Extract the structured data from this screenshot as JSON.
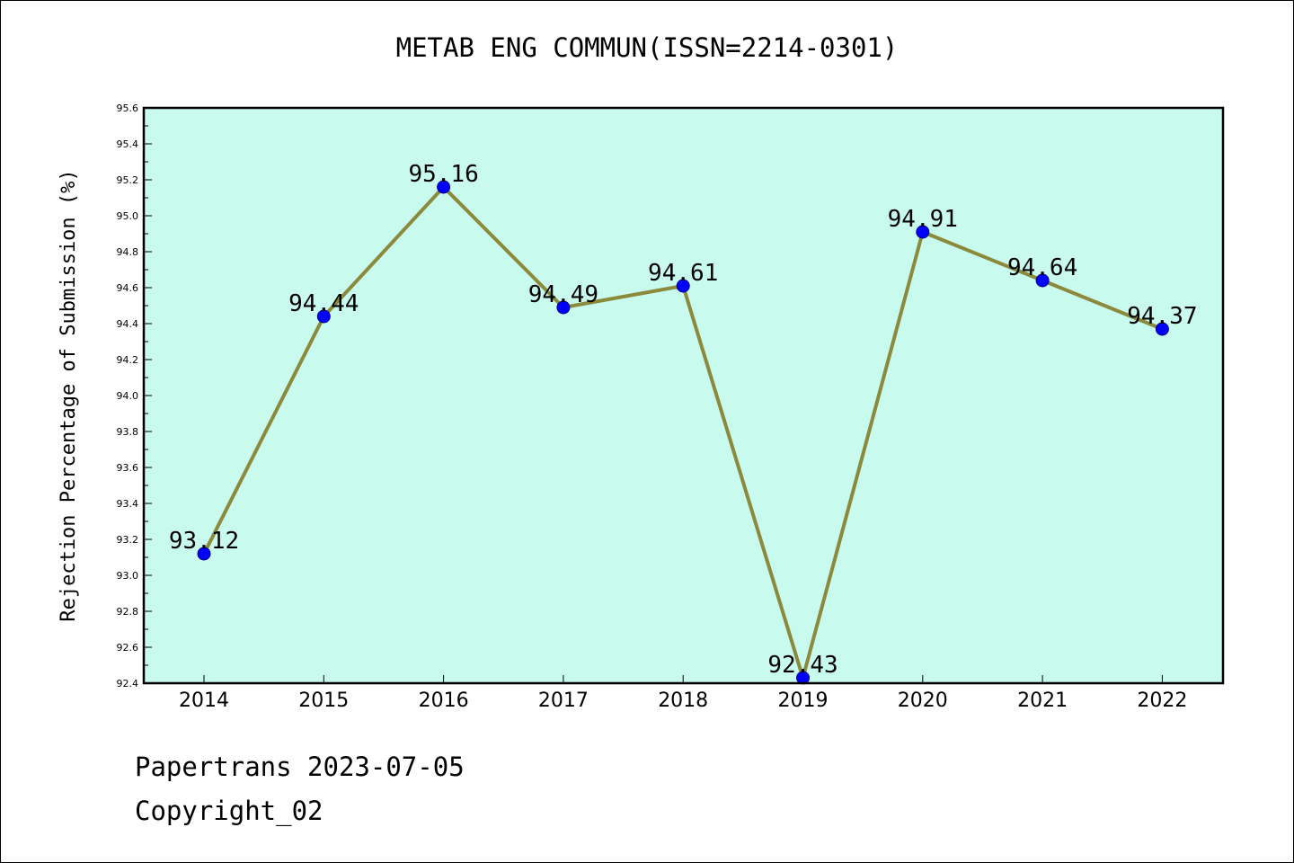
{
  "header": {
    "title": "METAB ENG COMMUN(ISSN=2214-0301)"
  },
  "footer": {
    "source_date": "Papertrans 2023-07-05",
    "copyright": "Copyright_02"
  },
  "colors": {
    "plot_background": "#c8fbee",
    "line": "#8b8a3c",
    "marker_fill": "#0000ff",
    "marker_edge": "#00008b",
    "axis": "#000000"
  },
  "chart_data": {
    "type": "line",
    "title": "METAB ENG COMMUN(ISSN=2214-0301)",
    "xlabel": "",
    "ylabel": "Rejection Percentage of Submission (%)",
    "categories": [
      "2014",
      "2015",
      "2016",
      "2017",
      "2018",
      "2019",
      "2020",
      "2021",
      "2022"
    ],
    "series": [
      {
        "values": [
          93.12,
          94.44,
          95.16,
          94.49,
          94.61,
          92.43,
          94.91,
          94.64,
          94.37
        ],
        "labels": [
          "93.12",
          "94.44",
          "95.16",
          "94.49",
          "94.61",
          "92.43",
          "94.91",
          "94.64",
          "94.37"
        ]
      }
    ],
    "ylim": [
      92.4,
      95.6
    ],
    "yticks": [
      "92.4",
      "92.6",
      "92.8",
      "93.0",
      "93.2",
      "93.4",
      "93.6",
      "93.8",
      "94.0",
      "94.2",
      "94.4",
      "94.6",
      "94.8",
      "95.0",
      "95.2",
      "95.4",
      "95.6"
    ],
    "grid": false,
    "legend": "none"
  }
}
